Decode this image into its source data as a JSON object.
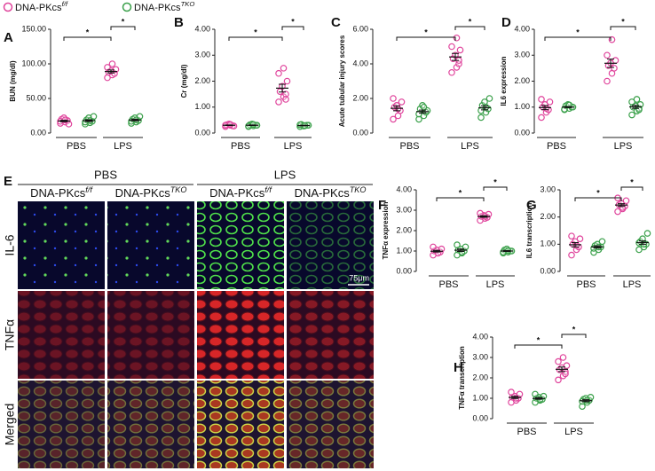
{
  "legend": [
    {
      "text": "DNA-PKcs",
      "sup": "f/f",
      "color": "#e0449c"
    },
    {
      "text": "DNA-PKcs",
      "sup": "TKO",
      "color": "#3aa04a"
    }
  ],
  "chart_data": [
    {
      "type": "dot",
      "panel": "A",
      "y_label": "BUN (mg/dl)",
      "categories": [
        "PBS",
        "LPS"
      ],
      "ylim": [
        0,
        150
      ],
      "yticks": [
        {
          "value": 0,
          "label": "0.00"
        },
        {
          "value": 50,
          "label": "50.00"
        },
        {
          "value": 100,
          "label": "100.00"
        },
        {
          "value": 150,
          "label": "150.00"
        }
      ],
      "significance_labels": [
        "*",
        "*"
      ],
      "series": [
        {
          "color": "#e0449c",
          "values": [
            [
              14,
              16,
              18,
              20,
              22,
              13,
              17,
              19
            ],
            [
              80,
              84,
              86,
              88,
              90,
              92,
              95,
              100
            ]
          ],
          "means": [
            17.4,
            89
          ],
          "errors": [
            1.1,
            2.2
          ]
        },
        {
          "color": "#3aa04a",
          "values": [
            [
              13,
              15,
              17,
              19,
              22,
              24,
              16,
              18
            ],
            [
              14,
              16,
              18,
              20,
              22,
              24,
              17,
              19
            ]
          ],
          "means": [
            18,
            18.8
          ],
          "errors": [
            1.3,
            1.2
          ]
        }
      ]
    },
    {
      "type": "dot",
      "panel": "B",
      "y_label": "Cr (mg/dl)",
      "categories": [
        "PBS",
        "LPS"
      ],
      "ylim": [
        0,
        4
      ],
      "yticks": [
        {
          "value": 0,
          "label": "0.00"
        },
        {
          "value": 1,
          "label": "1.00"
        },
        {
          "value": 2,
          "label": "2.00"
        },
        {
          "value": 3,
          "label": "3.00"
        },
        {
          "value": 4,
          "label": "4.00"
        }
      ],
      "significance_labels": [
        "*",
        "*"
      ],
      "series": [
        {
          "color": "#e0449c",
          "values": [
            [
              0.25,
              0.3,
              0.28,
              0.32,
              0.35,
              0.27,
              0.3,
              0.33
            ],
            [
              1.2,
              1.4,
              1.5,
              1.6,
              1.8,
              2.0,
              2.3,
              2.5,
              1.3
            ]
          ],
          "means": [
            0.3,
            1.73
          ],
          "errors": [
            0.01,
            0.15
          ]
        },
        {
          "color": "#3aa04a",
          "values": [
            [
              0.25,
              0.28,
              0.3,
              0.32,
              0.35,
              0.3,
              0.27,
              0.33
            ],
            [
              0.25,
              0.28,
              0.3,
              0.33,
              0.27,
              0.3,
              0.32,
              0.29
            ]
          ],
          "means": [
            0.3,
            0.29
          ],
          "errors": [
            0.01,
            0.01
          ]
        }
      ]
    },
    {
      "type": "dot",
      "panel": "C",
      "y_label": "Acute tubular injury scores",
      "categories": [
        "PBS",
        "LPS"
      ],
      "ylim": [
        0,
        6
      ],
      "yticks": [
        {
          "value": 0,
          "label": "0.00"
        },
        {
          "value": 2,
          "label": "2.00"
        },
        {
          "value": 4,
          "label": "4.00"
        },
        {
          "value": 6,
          "label": "6.00"
        }
      ],
      "significance_labels": [
        "*",
        "*"
      ],
      "series": [
        {
          "color": "#e0449c",
          "values": [
            [
              0.8,
              1.0,
              1.3,
              1.5,
              1.6,
              1.8,
              2.0,
              1.4
            ],
            [
              3.5,
              3.8,
              4.0,
              4.3,
              4.5,
              4.8,
              5.0,
              5.5,
              4.2
            ]
          ],
          "means": [
            1.43,
            4.4
          ],
          "errors": [
            0.14,
            0.2
          ]
        },
        {
          "color": "#3aa04a",
          "values": [
            [
              0.8,
              1.0,
              1.2,
              1.4,
              1.6,
              1.3,
              1.1,
              1.5
            ],
            [
              0.9,
              1.2,
              1.4,
              1.6,
              1.8,
              2.0,
              1.3,
              1.5
            ]
          ],
          "means": [
            1.24,
            1.46
          ],
          "errors": [
            0.09,
            0.12
          ]
        }
      ]
    },
    {
      "type": "dot",
      "panel": "D",
      "y_label": "IL6 expression",
      "categories": [
        "PBS",
        "LPS"
      ],
      "ylim": [
        0,
        4
      ],
      "yticks": [
        {
          "value": 0,
          "label": "0.00"
        },
        {
          "value": 1,
          "label": "1.00"
        },
        {
          "value": 2,
          "label": "2.00"
        },
        {
          "value": 3,
          "label": "3.00"
        },
        {
          "value": 4,
          "label": "4.00"
        }
      ],
      "significance_labels": [
        "*",
        "*"
      ],
      "series": [
        {
          "color": "#e0449c",
          "values": [
            [
              0.6,
              0.8,
              0.9,
              1.0,
              1.1,
              1.2,
              1.3,
              0.95
            ],
            [
              2.0,
              2.3,
              2.5,
              2.6,
              2.7,
              2.8,
              3.0,
              3.6
            ]
          ],
          "means": [
            0.98,
            2.69
          ],
          "errors": [
            0.08,
            0.16
          ]
        },
        {
          "color": "#3aa04a",
          "values": [
            [
              0.9,
              0.95,
              1.0,
              1.05,
              1.1,
              1.0,
              0.92,
              1.08
            ],
            [
              0.7,
              0.85,
              0.95,
              1.0,
              1.05,
              1.1,
              1.2,
              1.3,
              0.9
            ]
          ],
          "means": [
            1.0,
            1.01
          ],
          "errors": [
            0.02,
            0.06
          ]
        }
      ]
    },
    {
      "type": "dot",
      "panel": "F",
      "y_label": "TNFα expression",
      "categories": [
        "PBS",
        "LPS"
      ],
      "ylim": [
        0,
        4
      ],
      "yticks": [
        {
          "value": 0,
          "label": "0.00"
        },
        {
          "value": 1,
          "label": "1.00"
        },
        {
          "value": 2,
          "label": "2.00"
        },
        {
          "value": 3,
          "label": "3.00"
        },
        {
          "value": 4,
          "label": "4.00"
        }
      ],
      "significance_labels": [
        "*",
        "*"
      ],
      "series": [
        {
          "color": "#e0449c",
          "values": [
            [
              0.8,
              0.9,
              0.95,
              1.0,
              1.05,
              1.1,
              1.2,
              0.9
            ],
            [
              2.5,
              2.6,
              2.65,
              2.7,
              2.75,
              2.8,
              2.85,
              2.7
            ]
          ],
          "means": [
            0.99,
            2.69
          ],
          "errors": [
            0.04,
            0.04
          ]
        },
        {
          "color": "#3aa04a",
          "values": [
            [
              0.8,
              0.9,
              1.0,
              1.05,
              1.1,
              1.2,
              1.3,
              0.95
            ],
            [
              0.9,
              0.95,
              1.0,
              1.05,
              1.1,
              1.0,
              0.95,
              1.02
            ]
          ],
          "means": [
            1.04,
            1.0
          ],
          "errors": [
            0.06,
            0.02
          ]
        }
      ]
    },
    {
      "type": "dot",
      "panel": "G",
      "y_label": "IL6 transcription",
      "categories": [
        "PBS",
        "LPS"
      ],
      "ylim": [
        0,
        3
      ],
      "yticks": [
        {
          "value": 0,
          "label": "0.00"
        },
        {
          "value": 1,
          "label": "1.00"
        },
        {
          "value": 2,
          "label": "2.00"
        },
        {
          "value": 3,
          "label": "3.00"
        }
      ],
      "significance_labels": [
        "*",
        "*"
      ],
      "series": [
        {
          "color": "#e0449c",
          "values": [
            [
              0.6,
              0.8,
              0.9,
              1.0,
              1.1,
              1.2,
              1.3,
              0.95
            ],
            [
              2.2,
              2.3,
              2.4,
              2.45,
              2.5,
              2.6,
              2.7,
              2.35
            ]
          ],
          "means": [
            0.98,
            2.44
          ],
          "errors": [
            0.08,
            0.05
          ]
        },
        {
          "color": "#3aa04a",
          "values": [
            [
              0.7,
              0.8,
              0.9,
              0.95,
              1.0,
              1.1,
              0.85,
              0.9
            ],
            [
              0.8,
              0.9,
              1.0,
              1.1,
              1.2,
              1.4,
              1.05,
              1.0
            ]
          ],
          "means": [
            0.9,
            1.06
          ],
          "errors": [
            0.04,
            0.06
          ]
        }
      ]
    },
    {
      "type": "dot",
      "panel": "H",
      "y_label": "TNFα transcription",
      "categories": [
        "PBS",
        "LPS"
      ],
      "ylim": [
        0,
        4
      ],
      "yticks": [
        {
          "value": 0,
          "label": "0.00"
        },
        {
          "value": 1,
          "label": "1.00"
        },
        {
          "value": 2,
          "label": "2.00"
        },
        {
          "value": 3,
          "label": "3.00"
        },
        {
          "value": 4,
          "label": "4.00"
        }
      ],
      "significance_labels": [
        "*",
        "*"
      ],
      "series": [
        {
          "color": "#e0449c",
          "values": [
            [
              0.8,
              0.9,
              1.0,
              1.05,
              1.1,
              1.2,
              1.3,
              1.0
            ],
            [
              1.9,
              2.1,
              2.3,
              2.4,
              2.5,
              2.6,
              2.8,
              3.0,
              2.2
            ]
          ],
          "means": [
            1.04,
            2.42
          ],
          "errors": [
            0.05,
            0.11
          ]
        },
        {
          "color": "#3aa04a",
          "values": [
            [
              0.8,
              0.9,
              0.95,
              1.0,
              1.05,
              1.1,
              1.2,
              0.95
            ],
            [
              0.6,
              0.8,
              0.9,
              0.95,
              1.0,
              1.05,
              0.85,
              0.9
            ]
          ],
          "means": [
            0.99,
            0.88
          ],
          "errors": [
            0.04,
            0.05
          ]
        }
      ]
    }
  ],
  "image_panel": {
    "panel": "E",
    "groups": [
      "PBS",
      "LPS"
    ],
    "columns": [
      {
        "text": "DNA-PKcs",
        "sup": "f/f"
      },
      {
        "text": "DNA-PKcs",
        "sup": "TKO"
      },
      {
        "text": "DNA-PKcs",
        "sup": "f/f"
      },
      {
        "text": "DNA-PKcs",
        "sup": "TKO"
      }
    ],
    "rows": [
      "IL-6",
      "TNFα",
      "Merged"
    ],
    "scale_bar": "75μm"
  }
}
